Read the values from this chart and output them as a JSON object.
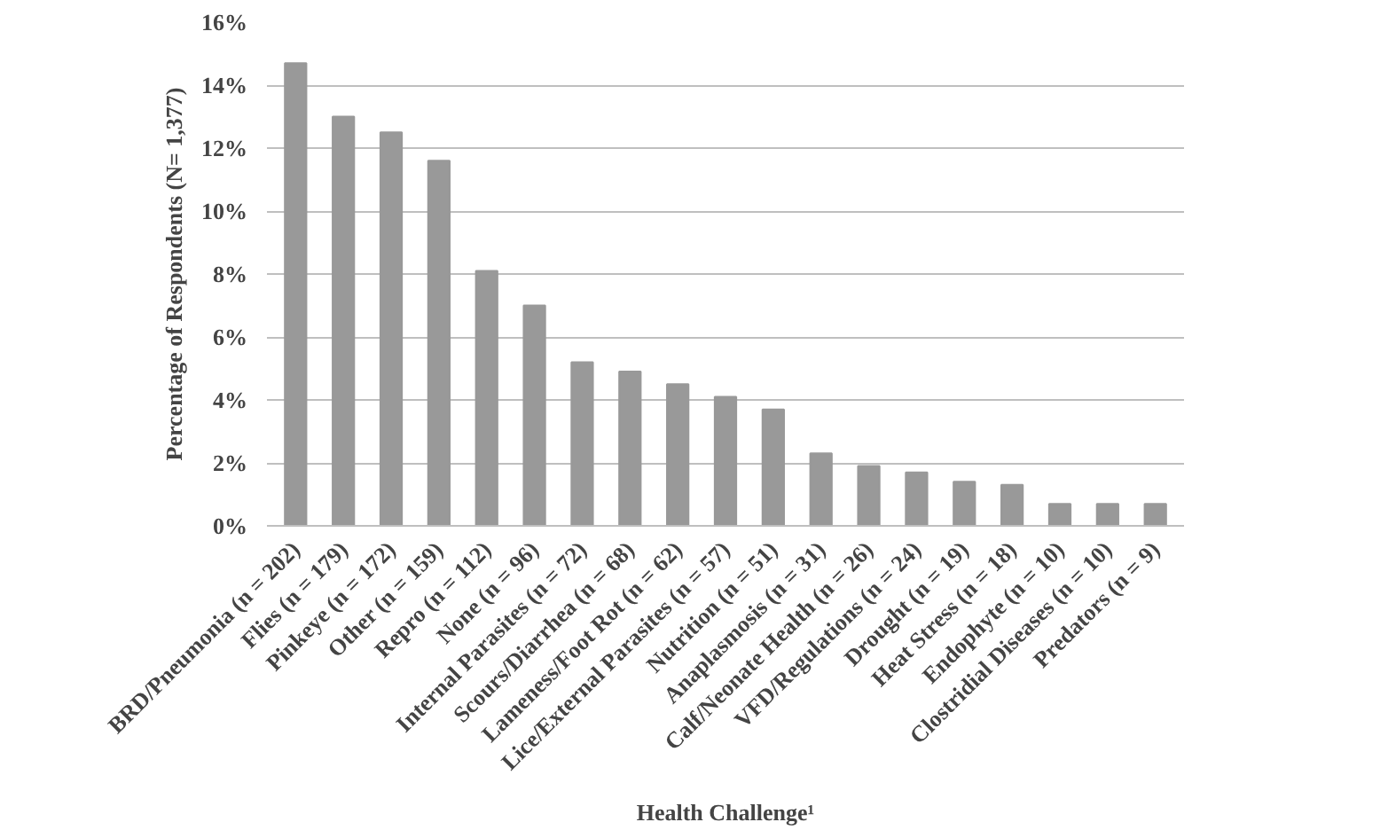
{
  "chart_data": {
    "type": "bar",
    "xlabel": "Health Challenge¹",
    "ylabel": "Percentage of Respondents (N= 1,377)",
    "categories": [
      "BRD/Pneumonia (n = 202)",
      "Flies (n = 179)",
      "Pinkeye (n = 172)",
      "Other (n = 159)",
      "Repro (n = 112)",
      "None (n = 96)",
      "Internal Parasites (n = 72)",
      "Scours/Diarrhea (n = 68)",
      "Lameness/Foot Rot (n = 62)",
      "Lice/External Parasites (n = 57)",
      "Nutrition (n = 51)",
      "Anaplasmosis (n = 31)",
      "Calf/Neonate Health (n = 26)",
      "VFD/Regulations (n = 24)",
      "Drought (n = 19)",
      "Heat Stress (n = 18)",
      "Endophyte (n = 10)",
      "Clostridial Diseases (n = 10)",
      "Predators (n = 9)"
    ],
    "values": [
      14.7,
      13.0,
      12.5,
      11.6,
      8.1,
      7.0,
      5.2,
      4.9,
      4.5,
      4.1,
      3.7,
      2.3,
      1.9,
      1.7,
      1.4,
      1.3,
      0.7,
      0.7,
      0.7
    ],
    "color": "#999999",
    "ylim": [
      0,
      16
    ],
    "yticks": [
      {
        "value": 0,
        "label": "0%"
      },
      {
        "value": 2,
        "label": "2%"
      },
      {
        "value": 4,
        "label": "4%"
      },
      {
        "value": 6,
        "label": "6%"
      },
      {
        "value": 8,
        "label": "8%"
      },
      {
        "value": 10,
        "label": "10%"
      },
      {
        "value": 12,
        "label": "12%"
      },
      {
        "value": 14,
        "label": "14%"
      },
      {
        "value": 16,
        "label": "16%"
      }
    ],
    "grid": "y"
  }
}
